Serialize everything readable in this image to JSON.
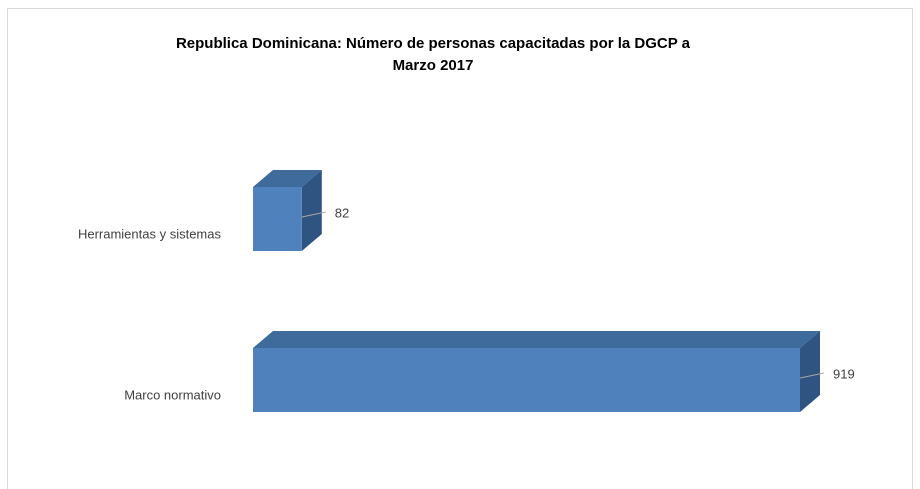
{
  "chart_data": {
    "type": "bar3d_horizontal",
    "title": [
      "Republica Dominicana: Número de personas capacitadas por la DGCP a",
      "Marzo 2017"
    ],
    "categories": [
      "Herramientas y sistemas",
      "Marco normativo"
    ],
    "values": [
      82,
      919
    ],
    "color": "#4f81bd"
  }
}
